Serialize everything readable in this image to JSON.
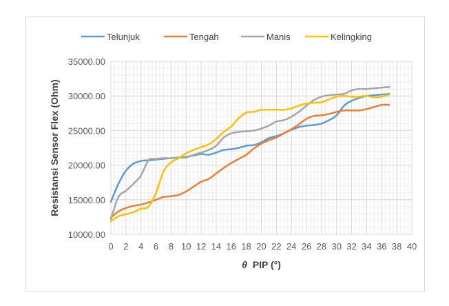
{
  "chart_data": {
    "type": "line",
    "xlabel_symbol": "θ",
    "xlabel": "PIP (°)",
    "ylabel": "Resistansi Sensor Flex (Ohm)",
    "xlim": [
      0,
      40
    ],
    "ylim": [
      10000,
      35000
    ],
    "x_ticks": [
      "0",
      "2",
      "4",
      "6",
      "8",
      "10",
      "12",
      "14",
      "16",
      "18",
      "20",
      "22",
      "24",
      "26",
      "28",
      "30",
      "32",
      "34",
      "36",
      "38",
      "40"
    ],
    "y_ticks": [
      "10000.00",
      "15000.00",
      "20000.00",
      "25000.00",
      "30000.00",
      "35000.00"
    ],
    "grid": true,
    "minor_grid": true,
    "legend_position": "top",
    "series": [
      {
        "name": "Telunjuk",
        "color": "#5b9bd5",
        "x": [
          0,
          1,
          2,
          3,
          4,
          5,
          6,
          7,
          8,
          9,
          10,
          11,
          12,
          13,
          14,
          15,
          16,
          17,
          18,
          19,
          20,
          21,
          22,
          23,
          24,
          25,
          26,
          27,
          28,
          29,
          30,
          31,
          32,
          33,
          34,
          35,
          36,
          37
        ],
        "values": [
          14700,
          17300,
          19200,
          20200,
          20600,
          20700,
          20800,
          20900,
          21000,
          21100,
          21200,
          21400,
          21600,
          21500,
          21800,
          22200,
          22300,
          22500,
          22800,
          22900,
          23300,
          23900,
          24200,
          24600,
          25100,
          25500,
          25700,
          25800,
          26000,
          26500,
          27200,
          28600,
          29300,
          29700,
          30000,
          30100,
          30200,
          30300
        ]
      },
      {
        "name": "Tengah",
        "color": "#ed7d31",
        "x": [
          0,
          1,
          2,
          3,
          4,
          5,
          6,
          7,
          8,
          9,
          10,
          11,
          12,
          13,
          14,
          15,
          16,
          17,
          18,
          19,
          20,
          21,
          22,
          23,
          24,
          25,
          26,
          27,
          28,
          29,
          30,
          31,
          32,
          33,
          34,
          35,
          36,
          37
        ],
        "values": [
          12400,
          13300,
          13800,
          14100,
          14300,
          14600,
          15000,
          15400,
          15500,
          15700,
          16200,
          16900,
          17600,
          18000,
          18800,
          19600,
          20300,
          20900,
          21500,
          22400,
          23100,
          23600,
          24000,
          24600,
          25200,
          25900,
          26700,
          27100,
          27200,
          27400,
          27700,
          27900,
          27900,
          27900,
          28100,
          28400,
          28700,
          28700
        ]
      },
      {
        "name": "Manis",
        "color": "#a5a5a5",
        "x": [
          0,
          1,
          2,
          3,
          4,
          5,
          6,
          7,
          8,
          9,
          10,
          11,
          12,
          13,
          14,
          15,
          16,
          17,
          18,
          19,
          20,
          21,
          22,
          23,
          24,
          25,
          26,
          27,
          28,
          29,
          30,
          31,
          32,
          33,
          34,
          35,
          36,
          37
        ],
        "values": [
          12200,
          15400,
          16300,
          17300,
          18500,
          20700,
          20900,
          21000,
          21000,
          21100,
          21100,
          21500,
          21800,
          22200,
          22800,
          24000,
          24600,
          24800,
          24900,
          25000,
          25300,
          25700,
          26300,
          26500,
          27000,
          27700,
          28600,
          29400,
          29900,
          30100,
          30200,
          30300,
          30800,
          31000,
          31000,
          31100,
          31200,
          31300
        ]
      },
      {
        "name": "Kelingking",
        "color": "#ffc000",
        "x": [
          0,
          1,
          2,
          3,
          4,
          5,
          6,
          7,
          8,
          9,
          10,
          11,
          12,
          13,
          14,
          15,
          16,
          17,
          18,
          19,
          20,
          21,
          22,
          23,
          24,
          25,
          26,
          27,
          28,
          29,
          30,
          31,
          32,
          33,
          34,
          35,
          36,
          37
        ],
        "values": [
          11900,
          12600,
          12900,
          13200,
          13700,
          14000,
          16000,
          19100,
          20400,
          21000,
          21700,
          22200,
          22600,
          23000,
          23800,
          24800,
          25600,
          26800,
          27600,
          27700,
          28000,
          28000,
          28000,
          28000,
          28200,
          28600,
          28900,
          29000,
          29100,
          29500,
          29900,
          30000,
          29900,
          29900,
          30000,
          29800,
          29900,
          30200
        ]
      }
    ]
  }
}
